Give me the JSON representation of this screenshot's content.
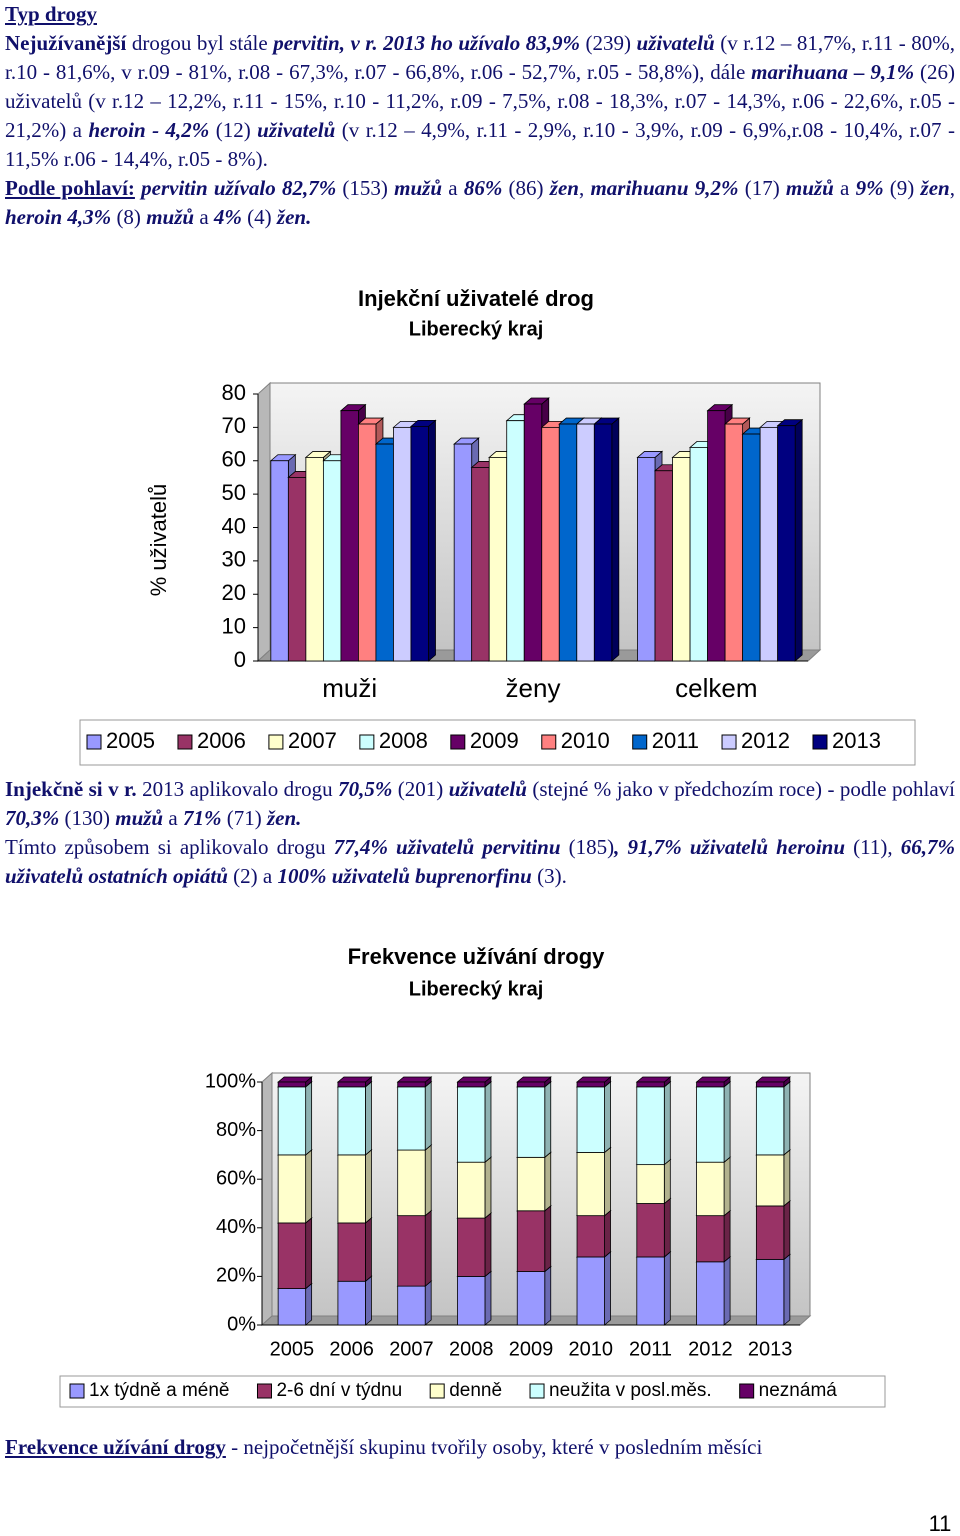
{
  "paragraphs": [
    {
      "runs": [
        [
          "Typ drogy",
          "bu"
        ]
      ]
    },
    {
      "runs": [
        [
          "Nejužívanější",
          "b"
        ],
        [
          "  drogou byl  stále ",
          "n"
        ],
        [
          "pervitin, v r. 2013 ho užívalo 83,9%",
          "bi"
        ],
        [
          " (239) ",
          "n"
        ],
        [
          "uživatelů",
          "bi"
        ],
        [
          " (v r.12 – 81,7%, r.11 - 80%, r.10 - 81,6%, v r.09 - 81%, r.08 - 67,3%, r.07 - 66,8%, r.06 - 52,7%, r.05 - 58,8%), dále ",
          "n"
        ],
        [
          "marihuana – 9,1%",
          "bi"
        ],
        [
          " (26) uživatelů (v r.12 – 12,2%, r.11 - 15%, r.10 - 11,2%, r.09 - 7,5%, r.08 - 18,3%, r.07 - 14,3%, r.06 - 22,6%, r.05 - 21,2%) a ",
          "n"
        ],
        [
          "heroin - 4,2%",
          "bi"
        ],
        [
          " (12) ",
          "n"
        ],
        [
          "uživatelů",
          "bi"
        ],
        [
          " (v r.12 – 4,9%, r.11 - 2,9%, r.10 - 3,9%, r.09 - 6,9%,r.08 - 10,4%, r.07 - 11,5% r.06 - 14,4%, r.05 - 8%).",
          "n"
        ]
      ]
    },
    {
      "runs": [
        [
          "Podle pohlaví:",
          "bu"
        ],
        [
          " ",
          "n"
        ],
        [
          "pervitin užívalo 82,7%",
          "bi"
        ],
        [
          " (153) ",
          "n"
        ],
        [
          "mužů",
          "bi"
        ],
        [
          " a ",
          "n"
        ],
        [
          "86%",
          "bi"
        ],
        [
          " (86) ",
          "n"
        ],
        [
          "žen",
          "bi"
        ],
        [
          ", ",
          "n"
        ],
        [
          "marihuanu 9,2%",
          "bi"
        ],
        [
          " (17) ",
          "n"
        ],
        [
          "mužů",
          "bi"
        ],
        [
          " a ",
          "n"
        ],
        [
          "9%",
          "bi"
        ],
        [
          " (9) ",
          "n"
        ],
        [
          "žen",
          "bi"
        ],
        [
          ", ",
          "n"
        ],
        [
          "heroin  4,3%",
          "bi"
        ],
        [
          " (8) ",
          "n"
        ],
        [
          "mužů",
          "bi"
        ],
        [
          " a ",
          "n"
        ],
        [
          "4%",
          "bi"
        ],
        [
          " (4) ",
          "n"
        ],
        [
          "žen.",
          "bi"
        ]
      ]
    },
    {
      "runs": [
        [
          "Injekčně si v r.",
          "b"
        ],
        [
          " 2013 aplikovalo drogu ",
          "n"
        ],
        [
          "70,5%",
          "bi"
        ],
        [
          " (201) ",
          "n"
        ],
        [
          "uživatelů",
          "bi"
        ],
        [
          " (stejné % jako v předchozím roce) - podle pohlaví ",
          "n"
        ],
        [
          "70,3%",
          "bi"
        ],
        [
          " (130) ",
          "n"
        ],
        [
          "mužů",
          "bi"
        ],
        [
          "  a ",
          "n"
        ],
        [
          "71%",
          "bi"
        ],
        [
          " (71) ",
          "n"
        ],
        [
          "žen.",
          "bi"
        ]
      ]
    },
    {
      "runs": [
        [
          "Tímto způsobem si aplikovalo drogu ",
          "n"
        ],
        [
          "77,4% uživatelů pervitinu",
          "bi"
        ],
        [
          " (185)",
          "n"
        ],
        [
          ", 91,7% uživatelů heroinu",
          "bi"
        ],
        [
          " (11), ",
          "n"
        ],
        [
          "66,7% uživatelů ostatních opiátů",
          "bi"
        ],
        [
          " (2) a ",
          "n"
        ],
        [
          "100% uživatelů buprenorfinu",
          "bi"
        ],
        [
          " (3).",
          "n"
        ]
      ]
    },
    {
      "runs": [
        [
          "Frekvence užívání drogy",
          "bu"
        ],
        [
          " - nejpočetnější skupinu tvořily osoby, které v posledním  měsíci",
          "n"
        ]
      ]
    }
  ],
  "chart_data": [
    {
      "type": "bar",
      "stacked": false,
      "title": "Injekční uživatelé drog",
      "subtitle": "Liberecký kraj",
      "y_label": "% uživatelů",
      "categories": [
        "muži",
        "ženy",
        "celkem"
      ],
      "series": [
        {
          "name": "2005",
          "color": "#9999ff",
          "values": [
            60,
            65,
            61
          ]
        },
        {
          "name": "2006",
          "color": "#993366",
          "values": [
            55,
            58,
            57
          ]
        },
        {
          "name": "2007",
          "color": "#ffffcc",
          "values": [
            61,
            61,
            61
          ]
        },
        {
          "name": "2008",
          "color": "#ccffff",
          "values": [
            60,
            72,
            64
          ]
        },
        {
          "name": "2009",
          "color": "#660066",
          "values": [
            75,
            77,
            75
          ]
        },
        {
          "name": "2010",
          "color": "#ff8080",
          "values": [
            71,
            70,
            71
          ]
        },
        {
          "name": "2011",
          "color": "#0066cc",
          "values": [
            65,
            71,
            68
          ]
        },
        {
          "name": "2012",
          "color": "#ccccff",
          "values": [
            70,
            71,
            70
          ]
        },
        {
          "name": "2013",
          "color": "#000080",
          "values": [
            70.3,
            71,
            70.5
          ]
        }
      ],
      "ylim": [
        0,
        80
      ],
      "yticks": [
        0,
        10,
        20,
        30,
        40,
        50,
        60,
        70,
        80
      ],
      "legend": "bottom"
    },
    {
      "type": "bar",
      "stacked": true,
      "title": "Frekvence užívání drogy",
      "subtitle": "Liberecký kraj",
      "categories": [
        "2005",
        "2006",
        "2007",
        "2008",
        "2009",
        "2010",
        "2011",
        "2012",
        "2013"
      ],
      "series": [
        {
          "name": "1x týdně a méně",
          "color": "#9999ff",
          "values": [
            15,
            18,
            16,
            20,
            22,
            28,
            28,
            26,
            27
          ]
        },
        {
          "name": "2-6 dní v týdnu",
          "color": "#993366",
          "values": [
            27,
            24,
            29,
            24,
            25,
            17,
            22,
            19,
            22
          ]
        },
        {
          "name": "denně",
          "color": "#ffffcc",
          "values": [
            28,
            28,
            27,
            23,
            22,
            26,
            16,
            22,
            21
          ]
        },
        {
          "name": "neužita v posl.měs.",
          "color": "#ccffff",
          "values": [
            28,
            28,
            26,
            31,
            29,
            27,
            32,
            31,
            28
          ]
        },
        {
          "name": "neznámá",
          "color": "#660066",
          "values": [
            2,
            2,
            2,
            2,
            2,
            2,
            2,
            2,
            2
          ]
        }
      ],
      "ylim": [
        0,
        100
      ],
      "yticks": [
        {
          "value": 0,
          "label": "0%"
        },
        {
          "value": 20,
          "label": "20%"
        },
        {
          "value": 40,
          "label": "40%"
        },
        {
          "value": 60,
          "label": "60%"
        },
        {
          "value": 80,
          "label": "80%"
        },
        {
          "value": 100,
          "label": "100%"
        }
      ],
      "legend": "bottom"
    }
  ],
  "page_number": "11"
}
